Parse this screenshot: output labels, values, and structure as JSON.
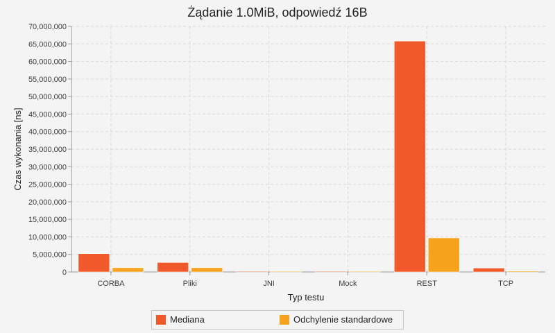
{
  "chart_data": {
    "type": "bar",
    "title": "Żądanie 1.0MiB, odpowiedź 16B",
    "xlabel": "Typ testu",
    "ylabel": "Czas wykonania [ns]",
    "categories": [
      "CORBA",
      "Pliki",
      "JNI",
      "Mock",
      "REST",
      "TCP"
    ],
    "series": [
      {
        "name": "Mediana",
        "color": "#f05a2a",
        "values": [
          5200000,
          2700000,
          100000,
          50000,
          65800000,
          1100000
        ]
      },
      {
        "name": "Odchylenie standardowe",
        "color": "#f7a21c",
        "values": [
          1200000,
          1200000,
          150000,
          150000,
          9700000,
          250000
        ]
      }
    ],
    "ylim": [
      0,
      70000000
    ],
    "yticks": [
      {
        "value": 0,
        "label": "0"
      },
      {
        "value": 5000000,
        "label": "5,000,000"
      },
      {
        "value": 10000000,
        "label": "10,000,000"
      },
      {
        "value": 15000000,
        "label": "15,000,000"
      },
      {
        "value": 20000000,
        "label": "20,000,000"
      },
      {
        "value": 25000000,
        "label": "25,000,000"
      },
      {
        "value": 30000000,
        "label": "30,000,000"
      },
      {
        "value": 35000000,
        "label": "35,000,000"
      },
      {
        "value": 40000000,
        "label": "40,000,000"
      },
      {
        "value": 45000000,
        "label": "45,000,000"
      },
      {
        "value": 50000000,
        "label": "50,000,000"
      },
      {
        "value": 55000000,
        "label": "55,000,000"
      },
      {
        "value": 60000000,
        "label": "60,000,000"
      },
      {
        "value": 65000000,
        "label": "65,000,000"
      },
      {
        "value": 70000000,
        "label": "70,000,000"
      }
    ],
    "grid": true,
    "legend": "bottom"
  }
}
